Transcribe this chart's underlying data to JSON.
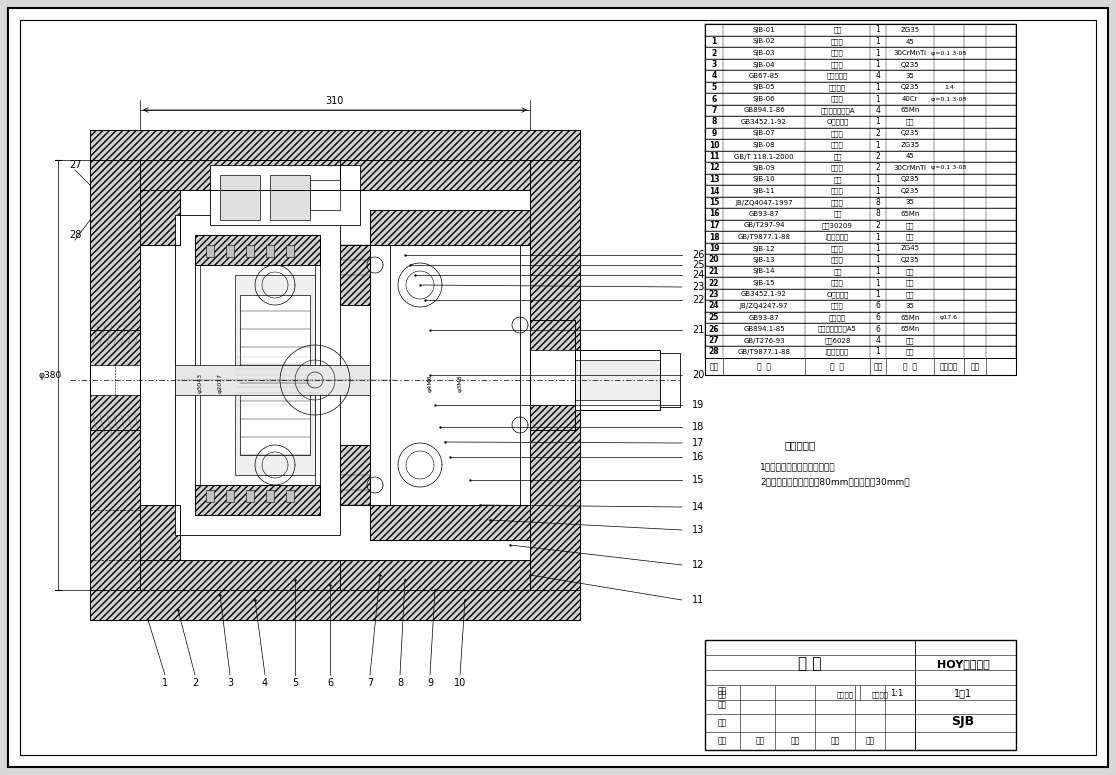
{
  "bg_color": "#ffffff",
  "border_color": "#000000",
  "tech_req_title": "技术要求：",
  "tech_req_1": "1、按通用液压技术条件装配。",
  "tech_req_2": "2、装配前电机轴插管径80mm，保证轴长30mm。",
  "part_nums_top": [
    "1",
    "2",
    "3",
    "4",
    "5",
    "6",
    "7",
    "8",
    "9",
    "10"
  ],
  "part_nums_right": [
    "11",
    "12",
    "13",
    "14",
    "15",
    "16",
    "17",
    "18",
    "19",
    "20",
    "21",
    "22",
    "23",
    "24",
    "25",
    "26"
  ],
  "part_nums_left": [
    "27",
    "28"
  ],
  "bom_rows": [
    [
      "28",
      "GB/T9877.1-88",
      "J型骨架油封",
      "1",
      "橡件",
      "",
      "",
      ""
    ],
    [
      "27",
      "GB/T276-93",
      "轴承6028",
      "4",
      "橡件",
      "",
      "",
      ""
    ],
    [
      "26",
      "GB894.1-85",
      "轴用弹性挡圈一A5",
      "6",
      "65Mn",
      "",
      "",
      ""
    ],
    [
      "25",
      "GB93-87",
      "弹性垫片",
      "6",
      "65Mn",
      "φ17.6",
      "",
      ""
    ],
    [
      "24",
      "JB/ZQ4247-97",
      "圆柱销",
      "6",
      "35",
      "",
      "",
      ""
    ],
    [
      "23",
      "GB3452.1-92",
      "O型密封圈",
      "1",
      "橡胶",
      "",
      "",
      ""
    ],
    [
      "22",
      "SJB-15",
      "支油座",
      "1",
      "组件",
      "",
      "",
      ""
    ],
    [
      "21",
      "SJB-14",
      "油圈",
      "1",
      "组件",
      "",
      "",
      ""
    ],
    [
      "20",
      "SJB-13",
      "阀阀套",
      "1",
      "Q235",
      "",
      "",
      ""
    ],
    [
      "19",
      "SJB-12",
      "行星架",
      "1",
      "ZG45",
      "",
      "",
      ""
    ],
    [
      "18",
      "GB/T9877.1-88",
      "J型骨架油封",
      "1",
      "橡胶",
      "",
      "",
      ""
    ],
    [
      "17",
      "GB/T297-94",
      "轴承30209",
      "2",
      "组件",
      "",
      "",
      ""
    ],
    [
      "16",
      "GB93-87",
      "弹垫",
      "8",
      "65Mn",
      "",
      "",
      ""
    ],
    [
      "15",
      "JB/ZQ4047-1997",
      "圆柱销",
      "8",
      "35",
      "",
      "",
      ""
    ],
    [
      "14",
      "SJB-11",
      "轴承盖",
      "1",
      "Q235",
      "",
      "",
      ""
    ],
    [
      "13",
      "SJB-10",
      "前盖",
      "1",
      "Q235",
      "",
      "",
      ""
    ],
    [
      "12",
      "SJB-09",
      "行星架",
      "2",
      "30CrMnTi",
      "φ=0.1 3-08",
      "",
      ""
    ],
    [
      "11",
      "GB/T 118.1-2000",
      "销轴",
      "2",
      "45",
      "",
      "",
      ""
    ],
    [
      "10",
      "SJB-08",
      "轴承环",
      "1",
      "ZG35",
      "",
      "",
      ""
    ],
    [
      "9",
      "SJB-07",
      "阀盖套",
      "2",
      "Q235",
      "",
      "",
      ""
    ],
    [
      "8",
      "GB3452.1-92",
      "O型密封圈",
      "1",
      "橡胶",
      "",
      "",
      ""
    ],
    [
      "7",
      "GB894.1-86",
      "轴用弹性挡圈一A",
      "4",
      "65Mn",
      "",
      "",
      ""
    ],
    [
      "6",
      "SJB-06",
      "内齿圈",
      "1",
      "40Cr",
      "φ=0.1 3-08",
      "",
      ""
    ],
    [
      "5",
      "SJB-05",
      "前风油标",
      "1",
      "Q235",
      "1:4",
      "",
      ""
    ],
    [
      "4",
      "GB67-85",
      "圆柱头螺钉",
      "4",
      "35",
      "",
      "",
      ""
    ],
    [
      "3",
      "SJB-04",
      "轴承座",
      "1",
      "Q235",
      "",
      "",
      ""
    ],
    [
      "2",
      "SJB-03",
      "传动轴",
      "1",
      "30CrMnTi",
      "φ=0.1 3-08",
      "",
      ""
    ],
    [
      "1",
      "SJB-02",
      "连接套",
      "1",
      "45",
      "",
      "",
      ""
    ],
    [
      "",
      "SJB-01",
      "壳件",
      "1",
      "ZG35",
      "",
      "",
      ""
    ]
  ],
  "title_block_label": "组 件",
  "title_block_right": "HOY型减速器",
  "title_block_code": "SJB",
  "dimension_310": "310",
  "dimension_left": "φ380",
  "scale": "1：1"
}
